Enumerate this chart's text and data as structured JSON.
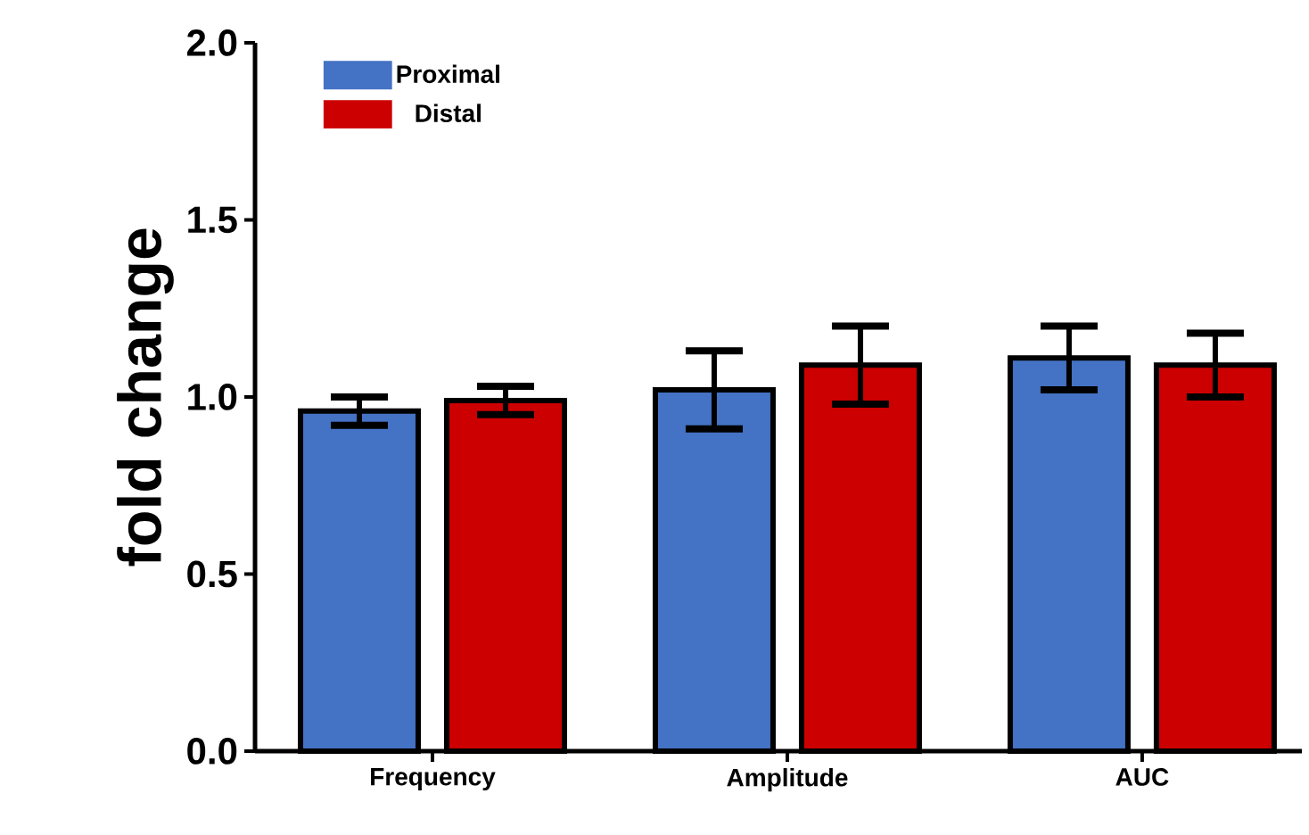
{
  "chart_data": {
    "type": "bar",
    "ylabel": "fold change",
    "categories": [
      "Frequency",
      "Amplitude",
      "AUC"
    ],
    "series": [
      {
        "name": "Proximal",
        "color": "#4472c4",
        "values": [
          0.96,
          1.02,
          1.11
        ],
        "errors": [
          0.04,
          0.11,
          0.09
        ]
      },
      {
        "name": "Distal",
        "color": "#cc0000",
        "values": [
          0.99,
          1.09,
          1.09
        ],
        "errors": [
          0.04,
          0.11,
          0.09
        ]
      }
    ],
    "ylim": [
      0,
      2.0
    ],
    "yticks": [
      {
        "value": 0,
        "label": "0.0"
      },
      0.5,
      {
        "value": 1,
        "label": "1.0"
      },
      1.5,
      {
        "value": 2,
        "label": "2.0"
      }
    ],
    "legend": "top left",
    "grid": false
  }
}
